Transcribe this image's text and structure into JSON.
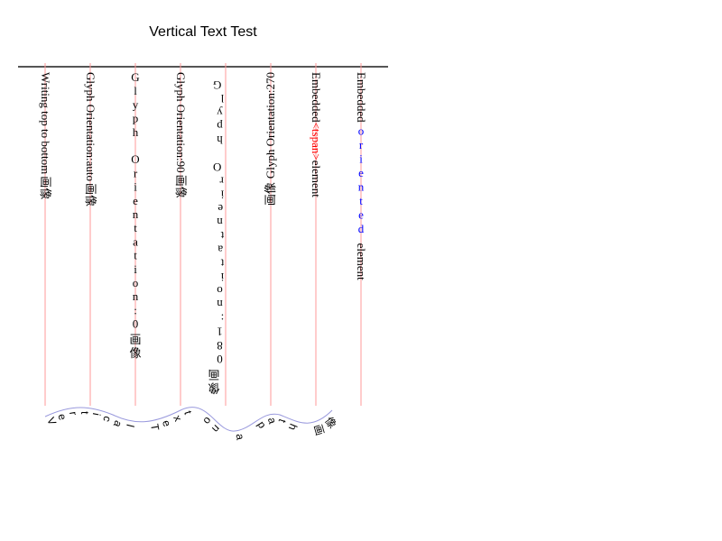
{
  "title": "Vertical Text Test",
  "columns": [
    {
      "text_latin": "Writing top to bottom",
      "text_cjk": "画像",
      "mode": "plain"
    },
    {
      "text_latin": "Glyph Orientation:auto",
      "text_cjk": "画像",
      "mode": "plain"
    },
    {
      "text_latin": "Glyph Orientation:0",
      "text_cjk": "画像",
      "mode": "upright"
    },
    {
      "text_latin": "Glyph Orientation:90",
      "text_cjk": "画像",
      "mode": "plain"
    },
    {
      "text_latin": "Glyph Orientation:180",
      "text_cjk": "画像",
      "mode": "flipped"
    },
    {
      "text_latin": "Glyph Orientation:270",
      "text_cjk": "画像",
      "mode": "reversed"
    },
    {
      "text_before": "Embedded ",
      "text_span": "<tspan>",
      "text_after": " element",
      "span_color": "#ff0000",
      "mode": "embedded"
    },
    {
      "text_before": "Embedded ",
      "text_span": "oriented",
      "text_after": " element",
      "span_color": "#0000ff",
      "mode": "embedded-upright"
    }
  ],
  "path_text": "Vertical Text on a path 画像",
  "colors": {
    "guide": "#ff9999",
    "axis": "#555555",
    "curve": "#9999dd",
    "red": "#ff0000",
    "blue": "#0000ff"
  }
}
